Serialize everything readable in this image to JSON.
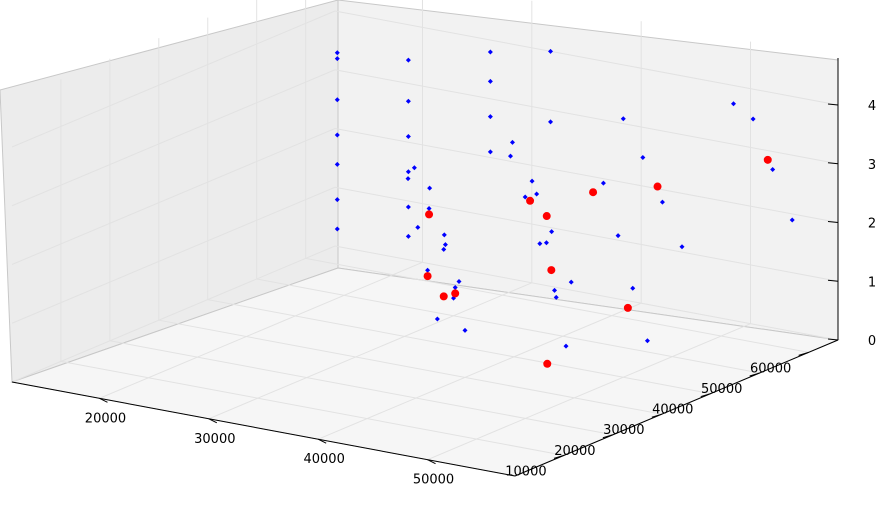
{
  "chart_data": {
    "type": "scatter",
    "projection": "3d",
    "title": "",
    "xlabel": "",
    "ylabel": "",
    "zlabel": "",
    "xlim": [
      12000,
      58000
    ],
    "ylim": [
      0,
      66000
    ],
    "zlim": [
      0,
      4.8
    ],
    "x_ticks": [
      "20000",
      "30000",
      "40000",
      "50000"
    ],
    "y_ticks": [
      "10000",
      "20000",
      "30000",
      "40000",
      "50000",
      "60000"
    ],
    "z_ticks": [
      "0",
      "1",
      "2",
      "3",
      "4"
    ],
    "grid": true,
    "legend": "none",
    "series": [
      {
        "marker": "diamond",
        "color": "#0000ff",
        "points": [
          [
            14000,
            62000,
            0.5
          ],
          [
            14000,
            62000,
            1.0
          ],
          [
            14000,
            62000,
            1.6
          ],
          [
            14000,
            62000,
            2.1
          ],
          [
            14000,
            62000,
            2.7
          ],
          [
            14000,
            62000,
            3.4
          ],
          [
            14000,
            62000,
            3.5
          ],
          [
            20500,
            62000,
            0.6
          ],
          [
            20500,
            62000,
            1.1
          ],
          [
            20500,
            62000,
            1.7
          ],
          [
            20500,
            62000,
            2.3
          ],
          [
            20500,
            62000,
            2.9
          ],
          [
            20500,
            62000,
            3.6
          ],
          [
            28000,
            62000,
            2.3
          ],
          [
            28000,
            62000,
            2.9
          ],
          [
            28000,
            62000,
            3.5
          ],
          [
            28000,
            62000,
            4.0
          ],
          [
            33500,
            62000,
            3.0
          ],
          [
            33500,
            62000,
            4.2
          ],
          [
            30000,
            50000,
            0.3
          ],
          [
            30000,
            48000,
            1.2
          ],
          [
            30000,
            45000,
            2.0
          ],
          [
            30000,
            42000,
            2.8
          ],
          [
            30500,
            50000,
            0.6
          ],
          [
            30500,
            47000,
            1.5
          ],
          [
            30500,
            44000,
            2.4
          ],
          [
            33000,
            40000,
            0.4
          ],
          [
            33000,
            38000,
            1.3
          ],
          [
            33000,
            36000,
            2.1
          ],
          [
            33000,
            34000,
            3.0
          ],
          [
            37000,
            55000,
            0.5
          ],
          [
            37000,
            52000,
            1.4
          ],
          [
            37000,
            49000,
            2.3
          ],
          [
            37000,
            46000,
            3.1
          ],
          [
            40000,
            30000,
            0.8
          ],
          [
            40000,
            28000,
            1.6
          ],
          [
            40000,
            26000,
            2.4
          ],
          [
            43000,
            45000,
            1.2
          ],
          [
            43000,
            41000,
            2.2
          ],
          [
            43000,
            37000,
            3.2
          ],
          [
            43000,
            33000,
            4.0
          ],
          [
            47000,
            35000,
            0.6
          ],
          [
            47000,
            33000,
            1.5
          ],
          [
            47000,
            31000,
            2.5
          ],
          [
            47000,
            29000,
            3.4
          ],
          [
            50000,
            52000,
            1.8
          ],
          [
            50000,
            48000,
            2.7
          ],
          [
            50000,
            44000,
            3.6
          ],
          [
            50000,
            40000,
            4.4
          ],
          [
            54000,
            36000,
            0.9
          ],
          [
            54000,
            33000,
            1.9
          ],
          [
            54000,
            30000,
            2.9
          ],
          [
            54000,
            27000,
            3.9
          ],
          [
            56500,
            60000,
            2.2
          ],
          [
            56500,
            56000,
            3.2
          ],
          [
            56500,
            52000,
            4.2
          ],
          [
            56500,
            48000,
            4.6
          ]
        ]
      },
      {
        "marker": "circle",
        "color": "#ff0000",
        "points": [
          [
            30000,
            48000,
            0.4
          ],
          [
            30000,
            45000,
            1.9
          ],
          [
            33000,
            38000,
            1.2
          ],
          [
            37000,
            50000,
            2.2
          ],
          [
            40000,
            28000,
            1.5
          ],
          [
            43000,
            40000,
            2.5
          ],
          [
            47000,
            32000,
            2.0
          ],
          [
            50000,
            47000,
            3.0
          ],
          [
            54000,
            32000,
            1.6
          ],
          [
            56500,
            55000,
            3.4
          ],
          [
            45000,
            45000,
            2.8
          ],
          [
            52000,
            20000,
            1.0
          ]
        ]
      }
    ]
  }
}
